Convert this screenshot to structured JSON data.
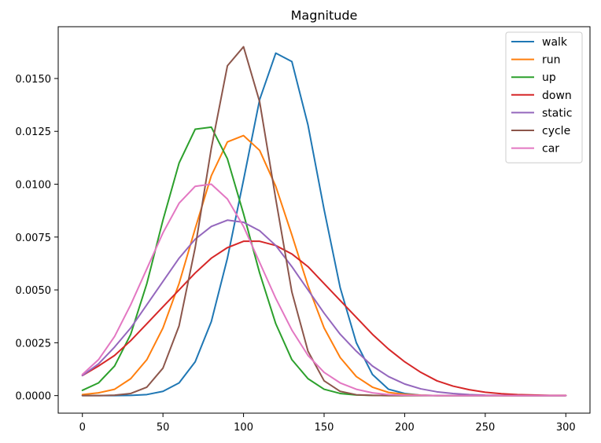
{
  "chart_data": {
    "type": "line",
    "title": "Magnitude",
    "xlabel": "",
    "ylabel": "",
    "xlim": [
      -15,
      315
    ],
    "ylim": [
      -0.00083,
      0.01745
    ],
    "xticks": [
      0,
      50,
      100,
      150,
      200,
      250,
      300
    ],
    "yticks": [
      0.0,
      0.0025,
      0.005,
      0.0075,
      0.01,
      0.0125,
      0.015
    ],
    "ytick_labels": [
      "0.0000",
      "0.0025",
      "0.0050",
      "0.0075",
      "0.0100",
      "0.0125",
      "0.0150"
    ],
    "grid": false,
    "legend_position": "top-right",
    "x": [
      0,
      10,
      20,
      30,
      40,
      50,
      60,
      70,
      80,
      90,
      100,
      110,
      120,
      130,
      140,
      150,
      160,
      170,
      180,
      190,
      200,
      210,
      220,
      230,
      240,
      250,
      260,
      270,
      280,
      290,
      300
    ],
    "series": [
      {
        "name": "walk",
        "color": "#1f77b4",
        "values": [
          0.0,
          0.0,
          0.0,
          1e-05,
          5e-05,
          0.0002,
          0.0006,
          0.0016,
          0.0035,
          0.0065,
          0.0102,
          0.014,
          0.0162,
          0.0158,
          0.0128,
          0.0088,
          0.0051,
          0.0025,
          0.001,
          0.0003,
          0.0001,
          2e-05,
          0.0,
          0.0,
          0.0,
          0.0,
          0.0,
          0.0,
          0.0,
          0.0,
          0.0
        ]
      },
      {
        "name": "run",
        "color": "#ff7f0e",
        "values": [
          5e-05,
          0.00013,
          0.0003,
          0.0008,
          0.0017,
          0.0032,
          0.0053,
          0.0079,
          0.0104,
          0.012,
          0.0123,
          0.0116,
          0.0099,
          0.0076,
          0.0052,
          0.0032,
          0.0018,
          0.0009,
          0.0004,
          0.00015,
          6e-05,
          2e-05,
          0.0,
          0.0,
          0.0,
          0.0,
          0.0,
          0.0,
          0.0,
          0.0,
          0.0
        ]
      },
      {
        "name": "up",
        "color": "#2ca02c",
        "values": [
          0.00025,
          0.0006,
          0.0014,
          0.0029,
          0.0053,
          0.0083,
          0.011,
          0.0126,
          0.0127,
          0.0112,
          0.0086,
          0.0058,
          0.0034,
          0.0017,
          0.0008,
          0.0003,
          0.0001,
          3e-05,
          1e-05,
          0.0,
          0.0,
          0.0,
          0.0,
          0.0,
          0.0,
          0.0,
          0.0,
          0.0,
          0.0,
          0.0,
          0.0
        ]
      },
      {
        "name": "down",
        "color": "#d62728",
        "values": [
          0.00095,
          0.0014,
          0.0019,
          0.0026,
          0.0034,
          0.0042,
          0.005,
          0.0058,
          0.0065,
          0.007,
          0.0073,
          0.0073,
          0.0071,
          0.0067,
          0.0061,
          0.0053,
          0.0045,
          0.0037,
          0.0029,
          0.0022,
          0.0016,
          0.0011,
          0.0007,
          0.00045,
          0.00028,
          0.00016,
          9e-05,
          5e-05,
          3e-05,
          1e-05,
          1e-05
        ]
      },
      {
        "name": "static",
        "color": "#9467bd",
        "values": [
          0.00095,
          0.0015,
          0.0023,
          0.0032,
          0.0043,
          0.0054,
          0.0065,
          0.0074,
          0.008,
          0.0083,
          0.0082,
          0.0078,
          0.0071,
          0.0061,
          0.005,
          0.0039,
          0.0029,
          0.0021,
          0.0014,
          0.0009,
          0.00055,
          0.00032,
          0.00018,
          0.0001,
          5e-05,
          2e-05,
          1e-05,
          0.0,
          0.0,
          0.0,
          0.0
        ]
      },
      {
        "name": "cycle",
        "color": "#8c564b",
        "values": [
          0.0,
          0.0,
          2e-05,
          0.0001,
          0.0004,
          0.0013,
          0.0033,
          0.007,
          0.0117,
          0.0156,
          0.0165,
          0.0139,
          0.0093,
          0.0049,
          0.0021,
          0.0007,
          0.0002,
          4e-05,
          1e-05,
          0.0,
          0.0,
          0.0,
          0.0,
          0.0,
          0.0,
          0.0,
          0.0,
          0.0,
          0.0,
          0.0,
          0.0
        ]
      },
      {
        "name": "car",
        "color": "#e377c2",
        "values": [
          0.001,
          0.0017,
          0.0028,
          0.0043,
          0.006,
          0.0077,
          0.0091,
          0.0099,
          0.01,
          0.0093,
          0.008,
          0.0063,
          0.0046,
          0.0031,
          0.0019,
          0.0011,
          0.0006,
          0.0003,
          0.00013,
          5e-05,
          2e-05,
          1e-05,
          0.0,
          0.0,
          0.0,
          0.0,
          0.0,
          0.0,
          0.0,
          0.0,
          0.0
        ]
      }
    ]
  }
}
